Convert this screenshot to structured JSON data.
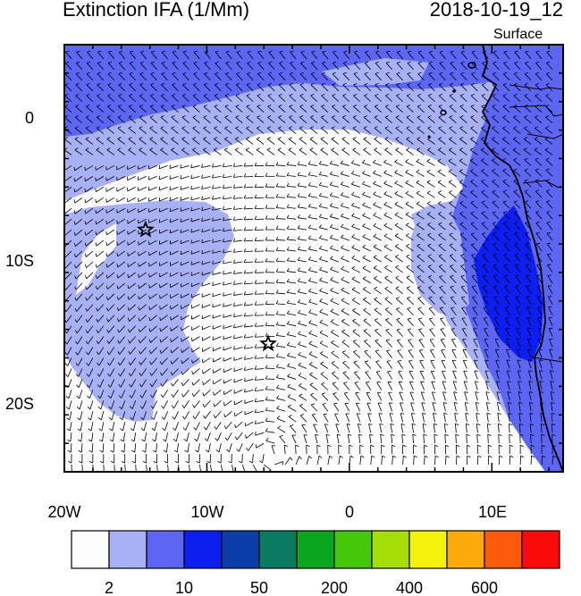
{
  "title": "Extinction IFA (1/Mm)",
  "datetime": "2018-10-19_12",
  "level": "Surface",
  "map": {
    "lon_range": [
      -20,
      15
    ],
    "lat_range": [
      -25,
      5
    ],
    "lat_ticks": [
      {
        "value": 0,
        "label": "0"
      },
      {
        "value": -10,
        "label": "10S"
      },
      {
        "value": -20,
        "label": "20S"
      }
    ],
    "lon_ticks": [
      {
        "value": -20,
        "label": "20W"
      },
      {
        "value": -10,
        "label": "10W"
      },
      {
        "value": 0,
        "label": "0"
      },
      {
        "value": 10,
        "label": "10E"
      }
    ],
    "stars": [
      {
        "lon": -14.3,
        "lat": -8.0
      },
      {
        "lon": -5.7,
        "lat": -16.0
      }
    ]
  },
  "colorbar": {
    "colors": [
      "#fdfdfd",
      "#a9b1f5",
      "#5c66f3",
      "#0d1ef0",
      "#0a3caa",
      "#0a7a60",
      "#0aa620",
      "#46c80a",
      "#a6de0a",
      "#f2f20a",
      "#faaa0a",
      "#fa5a0a",
      "#fa0a0a"
    ],
    "labels": [
      "2",
      "10",
      "50",
      "200",
      "400",
      "600"
    ],
    "label_after_box": [
      1,
      3,
      5,
      7,
      9,
      11
    ]
  },
  "field_colors": {
    "very_low": "#fdfdfd",
    "low": "#a9b1f5",
    "medium": "#5c66f3",
    "high": "#0d1ef0"
  }
}
